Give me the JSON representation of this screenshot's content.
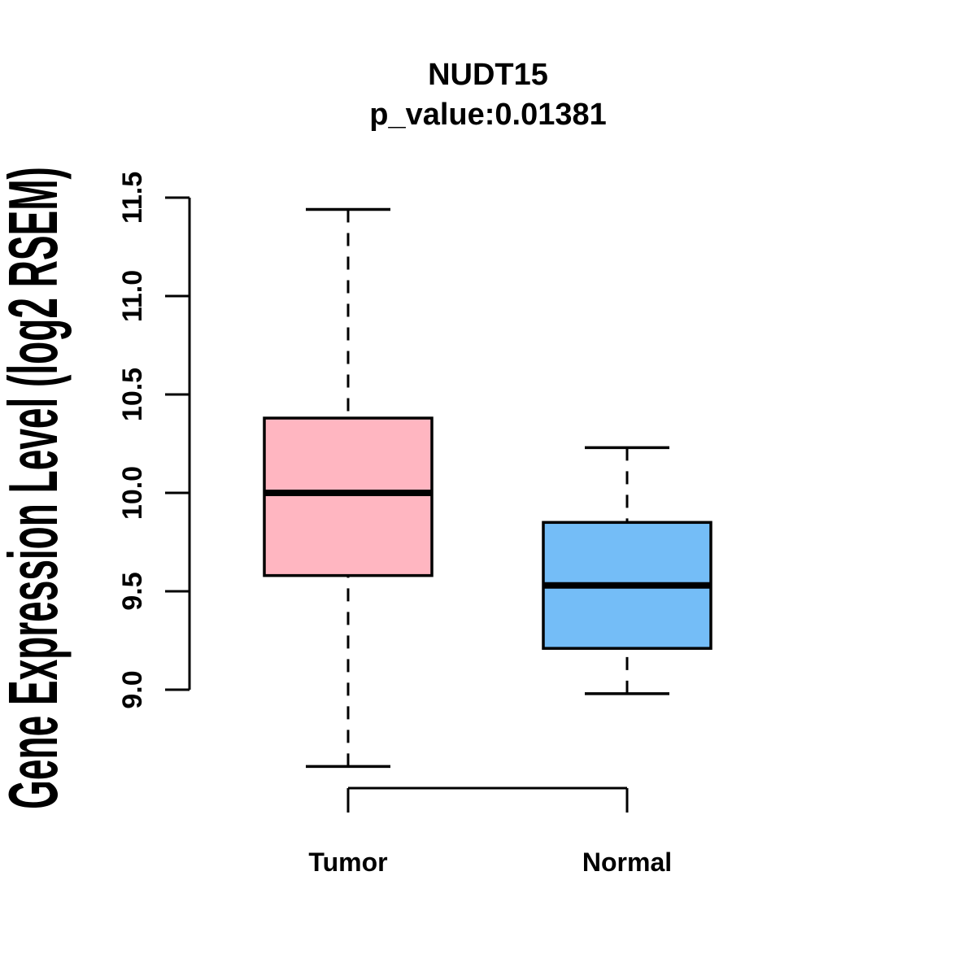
{
  "figure": {
    "title": "NUDT15",
    "subtitle": "p_value:0.01381",
    "y_axis_title": "Gene Expression Level (log2 RSEM)",
    "background_color": "#FFFFFF",
    "line_color": "#000000"
  },
  "chart_data": {
    "type": "boxplot",
    "title": "NUDT15",
    "subtitle": "p_value:0.01381",
    "p_value": 0.01381,
    "gene": "NUDT15",
    "xlabel": "",
    "ylabel": "Gene Expression Level (log2 RSEM)",
    "categories": [
      "Tumor",
      "Normal"
    ],
    "series": [
      {
        "name": "Tumor",
        "color": "#FFB6C1",
        "whisker_low": 8.61,
        "q1": 9.58,
        "median": 10.0,
        "q3": 10.38,
        "whisker_high": 11.44
      },
      {
        "name": "Normal",
        "color": "#74BDF7",
        "whisker_low": 8.98,
        "q1": 9.21,
        "median": 9.53,
        "q3": 9.85,
        "whisker_high": 10.23
      }
    ],
    "y_ticks": [
      9.0,
      9.5,
      10.0,
      10.5,
      11.0,
      11.5
    ],
    "y_tick_labels": [
      "9.0",
      "9.5",
      "10.0",
      "10.5",
      "11.0",
      "11.5"
    ],
    "y_axis_range": [
      9.0,
      11.5
    ],
    "grid": "off",
    "legend": "none",
    "whisker_style": "dashed",
    "box_border_color": "#000000",
    "median_color": "#000000",
    "axis_color": "#000000"
  }
}
